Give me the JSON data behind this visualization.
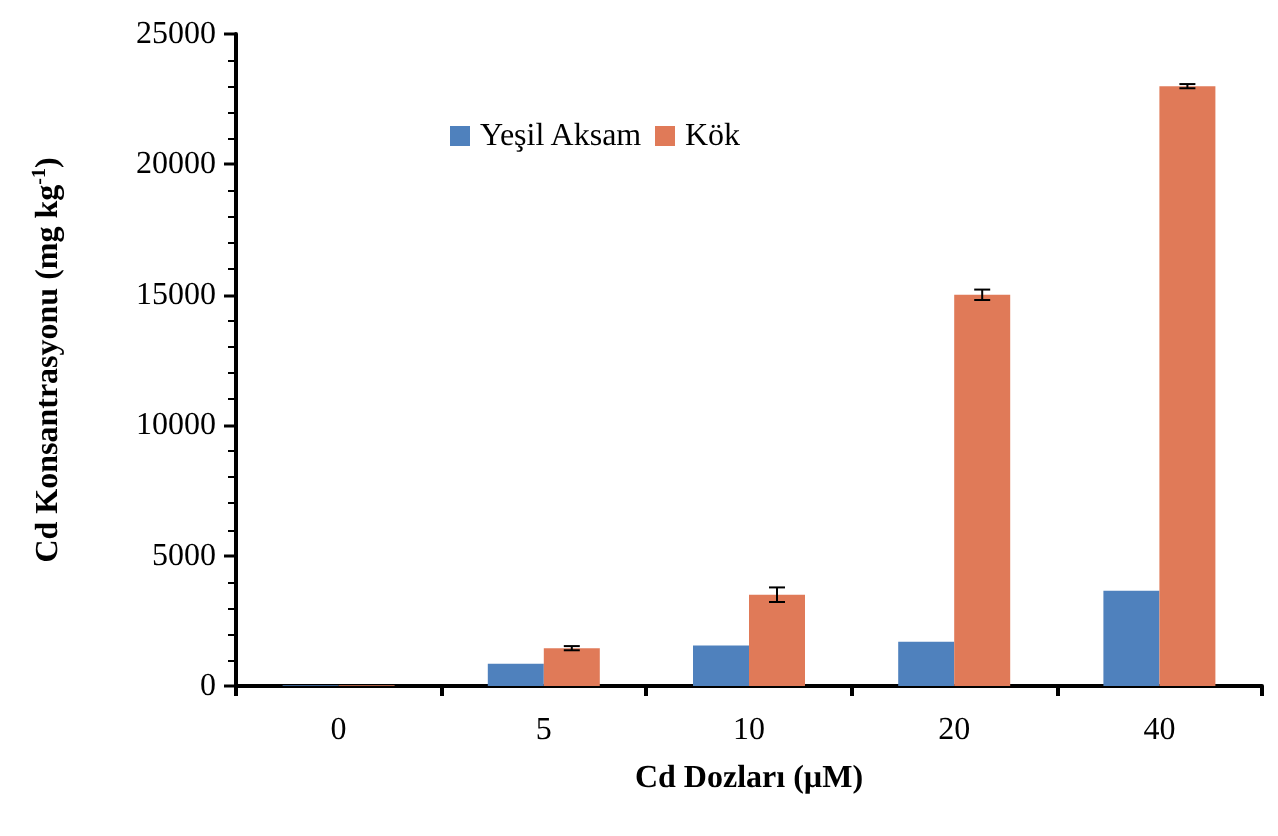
{
  "chart_data": {
    "type": "bar",
    "xlabel": "Cd Dozları (µM)",
    "ylabel": "Cd Konsantrasyonu (mg kg$^{-1}$)",
    "categories": [
      "0",
      "5",
      "10",
      "20",
      "40"
    ],
    "series": [
      {
        "name": "Yeşil Aksam",
        "color": "#4f81bd",
        "values": [
          30,
          850,
          1550,
          1700,
          3650
        ],
        "errors": [
          null,
          null,
          null,
          null,
          null
        ]
      },
      {
        "name": "Kök",
        "color": "#e07a58",
        "values": [
          30,
          1450,
          3500,
          15000,
          23000
        ],
        "errors": [
          null,
          80,
          280,
          200,
          80
        ]
      }
    ],
    "ylim": [
      0,
      25000
    ],
    "yticks": [
      0,
      5000,
      10000,
      15000,
      20000,
      25000
    ],
    "grid": false,
    "legend": "top left"
  }
}
